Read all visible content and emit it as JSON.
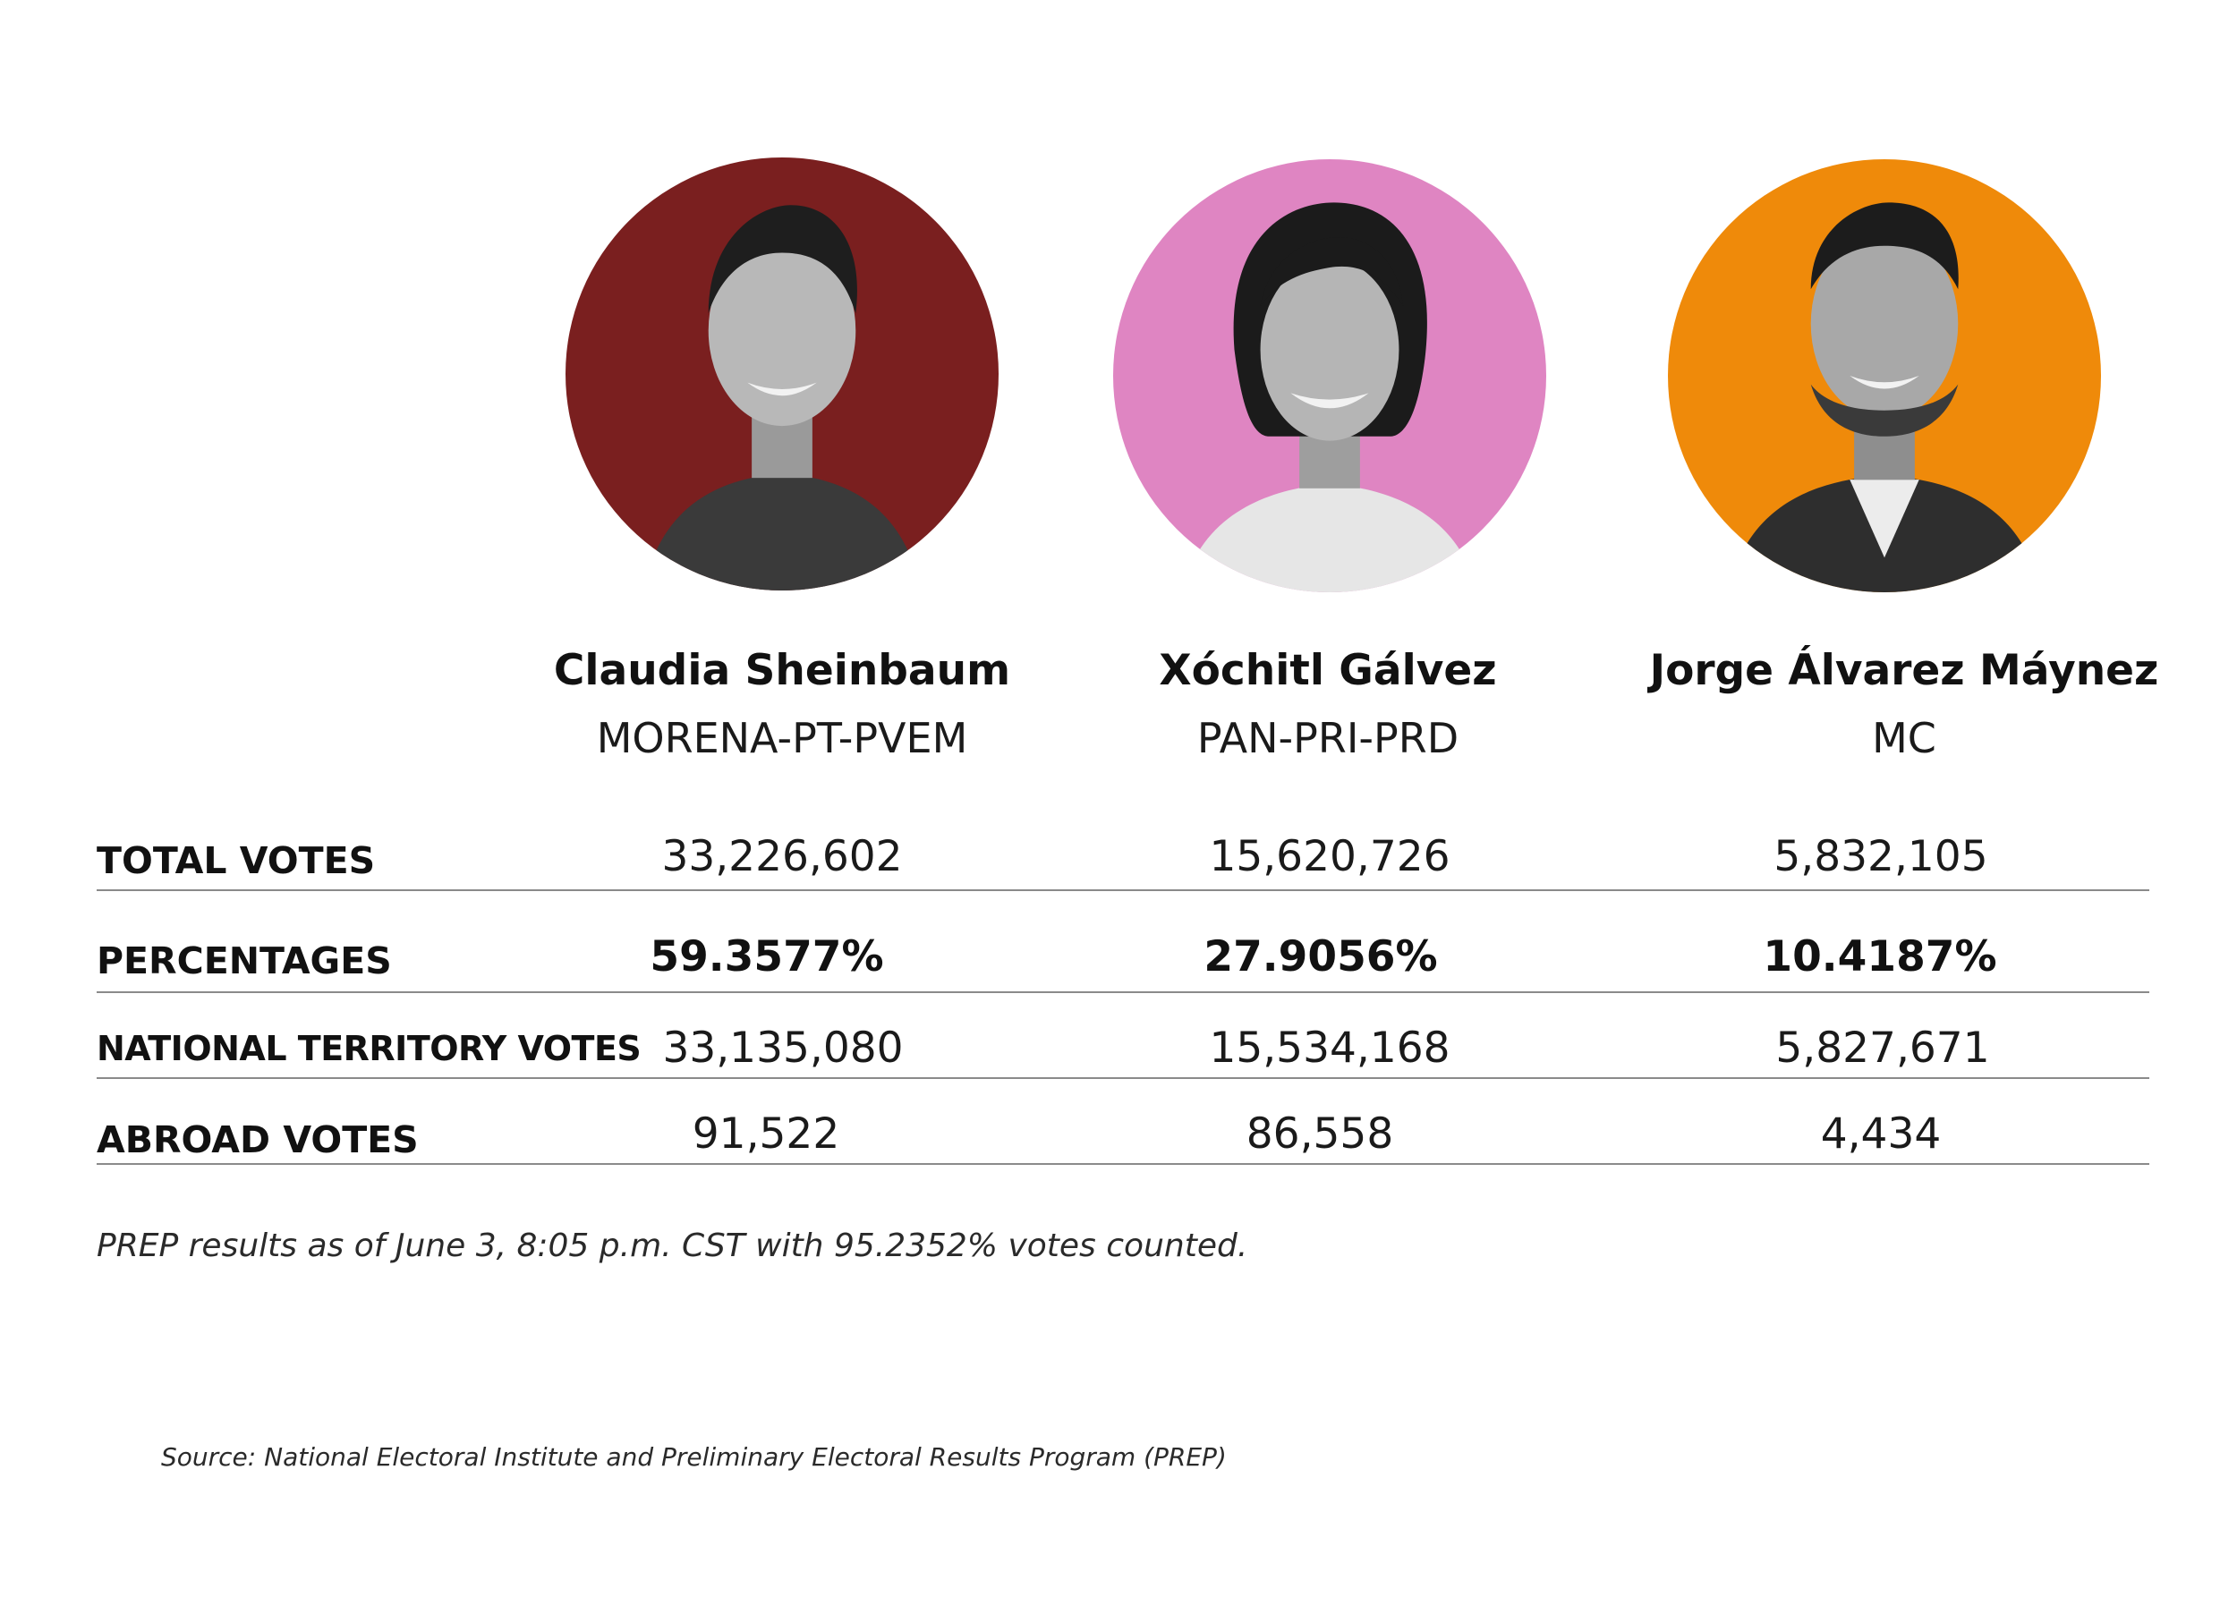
{
  "candidates": [
    {
      "name": "Claudia Sheinbaum",
      "party": "MORENA-PT-PVEM",
      "portrait_bg": "#7a1f1f",
      "portrait_icon": "person-portrait-icon"
    },
    {
      "name": "Xóchitl Gálvez",
      "party": "PAN-PRI-PRD",
      "portrait_bg": "#df85c2",
      "portrait_icon": "person-portrait-icon"
    },
    {
      "name": "Jorge Álvarez Máynez",
      "party": "MC",
      "portrait_bg": "#ef8a0a",
      "portrait_icon": "person-portrait-icon"
    }
  ],
  "table": {
    "rows": [
      {
        "label": "TOTAL VOTES",
        "values": [
          "33,226,602",
          "15,620,726",
          "5,832,105"
        ]
      },
      {
        "label": "PERCENTAGES",
        "values": [
          "59.3577%",
          "27.9056%",
          "10.4187%"
        ]
      },
      {
        "label": "NATIONAL TERRITORY VOTES",
        "values": [
          "33,135,080",
          "15,534,168",
          "5,827,671"
        ]
      },
      {
        "label": "ABROAD VOTES",
        "values": [
          "91,522",
          "86,558",
          "4,434"
        ]
      }
    ]
  },
  "note": "PREP results as of June 3, 8:05 p.m. CST with 95.2352% votes counted.",
  "source": "Source: National Electoral Institute and Preliminary Electoral Results Program (PREP)"
}
